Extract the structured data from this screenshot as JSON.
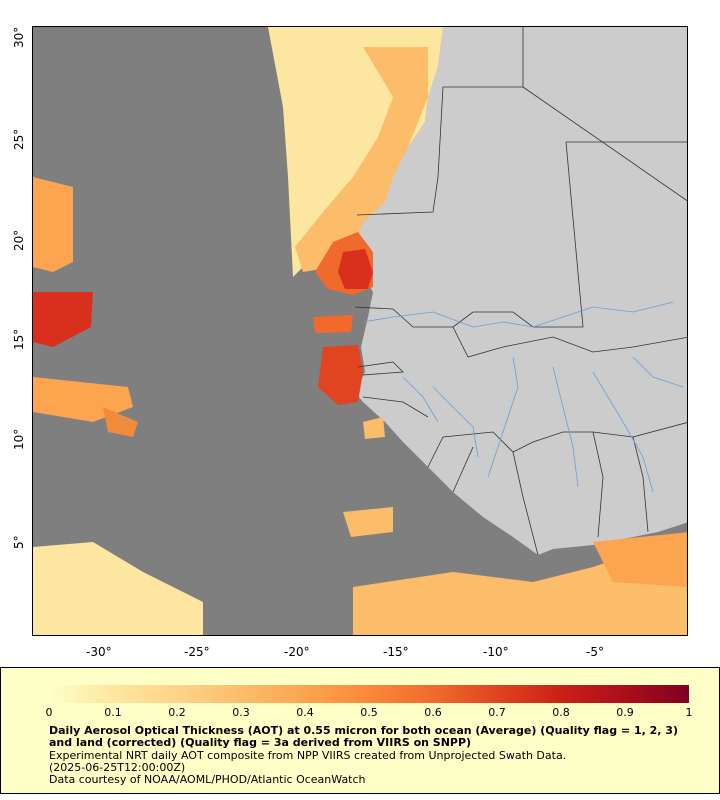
{
  "map": {
    "x_ticks": [
      "-30°",
      "-25°",
      "-20°",
      "-15°",
      "-10°",
      "-5°"
    ],
    "y_ticks": [
      "30°",
      "25°",
      "20°",
      "15°",
      "10°",
      "5°"
    ],
    "colors": {
      "no_data_ocean": "#7f7f7f",
      "land": "#cccccc",
      "borders": "#333333",
      "rivers": "#6a9fd8"
    }
  },
  "legend": {
    "colorbar_labels": [
      "0",
      "0.1",
      "0.2",
      "0.3",
      "0.4",
      "0.5",
      "0.6",
      "0.7",
      "0.8",
      "0.9",
      "1"
    ],
    "colorbar_colors": [
      "#ffffc8",
      "#ffe6a0",
      "#fdd48a",
      "#fcbd6a",
      "#fca450",
      "#fb883c",
      "#f06a2c",
      "#e04420",
      "#cc2018",
      "#aa0e1c",
      "#800020"
    ],
    "title": "Daily Aerosol Optical Thickness (AOT) at 0.55 micron for both ocean (Average) (Quality flag = 1, 2, 3) and land (corrected) (Quality flag = 3a derived from VIIRS on SNPP)",
    "line1": "Experimental NRT daily AOT composite from NPP VIIRS created from Unprojected Swath Data.",
    "line2": "(2025-06-25T12:00:00Z)",
    "line3": "Data courtesy of NOAA/AOML/PHOD/Atlantic OceanWatch"
  }
}
